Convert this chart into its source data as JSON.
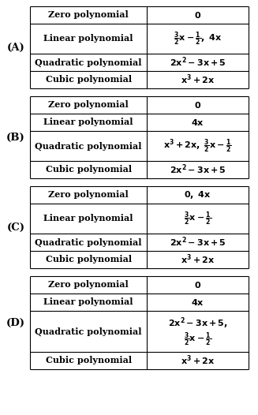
{
  "bg_color": "#ffffff",
  "border_color": "#000000",
  "text_color": "#000000",
  "fig_width": 3.27,
  "fig_height": 5.26,
  "dpi": 100,
  "options": [
    {
      "label": "(A)",
      "rows": [
        {
          "col1": "Zero polynomial",
          "col2": "$\\mathbf{0}$",
          "tall": false
        },
        {
          "col1": "Linear polynomial",
          "col2": "$\\mathbf{\\frac{3}{2}x - \\frac{1}{2},\\ 4x}$",
          "tall": true
        },
        {
          "col1": "Quadratic polynomial",
          "col2": "$\\mathbf{2x^2 - 3x + 5}$",
          "tall": false
        },
        {
          "col1": "Cubic polynomial",
          "col2": "$\\mathbf{x^3 + 2x}$",
          "tall": false
        }
      ]
    },
    {
      "label": "(B)",
      "rows": [
        {
          "col1": "Zero polynomial",
          "col2": "$\\mathbf{0}$",
          "tall": false
        },
        {
          "col1": "Linear polynomial",
          "col2": "$\\mathbf{4x}$",
          "tall": false
        },
        {
          "col1": "Quadratic polynomial",
          "col2": "$\\mathbf{x^3 + 2x,\\ \\frac{3}{2}x - \\frac{1}{2}}$",
          "tall": true
        },
        {
          "col1": "Cubic polynomial",
          "col2": "$\\mathbf{2x^2 - 3x + 5}$",
          "tall": false
        }
      ]
    },
    {
      "label": "(C)",
      "rows": [
        {
          "col1": "Zero polynomial",
          "col2": "$\\mathbf{0,\\ 4x}$",
          "tall": false
        },
        {
          "col1": "Linear polynomial",
          "col2": "$\\mathbf{\\frac{3}{2}x - \\frac{1}{2}}$",
          "tall": true
        },
        {
          "col1": "Quadratic polynomial",
          "col2": "$\\mathbf{2x^2 - 3x + 5}$",
          "tall": false
        },
        {
          "col1": "Cubic polynomial",
          "col2": "$\\mathbf{x^3 + 2x}$",
          "tall": false
        }
      ]
    },
    {
      "label": "(D)",
      "rows": [
        {
          "col1": "Zero polynomial",
          "col2": "$\\mathbf{0}$",
          "tall": false
        },
        {
          "col1": "Linear polynomial",
          "col2": "$\\mathbf{4x}$",
          "tall": false
        },
        {
          "col1": "Quadratic polynomial",
          "col2": "$\\mathbf{2x^2 - 3x + 5,}$\n$\\mathbf{\\frac{3}{2}x - \\frac{1}{2}}$",
          "tall": true,
          "two_lines": true
        },
        {
          "col1": "Cubic polynomial",
          "col2": "$\\mathbf{x^3 + 2x}$",
          "tall": false
        }
      ]
    }
  ]
}
